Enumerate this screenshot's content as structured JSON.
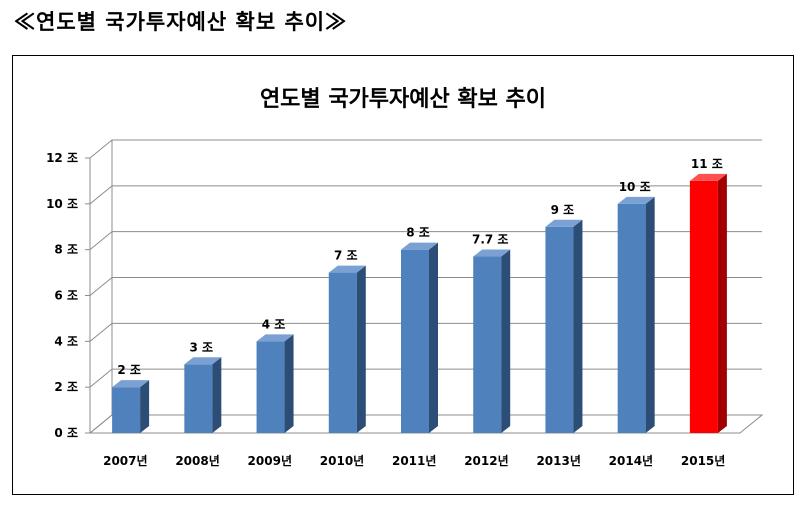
{
  "page": {
    "heading": "≪연도별 국가투자예산 확보 추이≫"
  },
  "colors": {
    "bar": "#4f81bd",
    "highlight": "#ff0000"
  },
  "chart_data": {
    "type": "bar",
    "title": "연도별 국가투자예산 확보 추이",
    "categories": [
      "2007년",
      "2008년",
      "2009년",
      "2010년",
      "2011년",
      "2012년",
      "2013년",
      "2014년",
      "2015년"
    ],
    "values": [
      2,
      3,
      4,
      7,
      8,
      7.7,
      9,
      10,
      11
    ],
    "data_labels": [
      "2 조",
      "3 조",
      "4 조",
      "7 조",
      "8 조",
      "7.7 조",
      "9 조",
      "10 조",
      "11 조"
    ],
    "highlight_index": 8,
    "yticks": [
      0,
      2,
      4,
      6,
      8,
      10,
      12
    ],
    "ytick_labels": [
      "0 조",
      "2 조",
      "4 조",
      "6 조",
      "8 조",
      "10 조",
      "12 조"
    ],
    "ylim": [
      0,
      12
    ],
    "grid": true,
    "legend": "none",
    "style": "3d-column"
  }
}
